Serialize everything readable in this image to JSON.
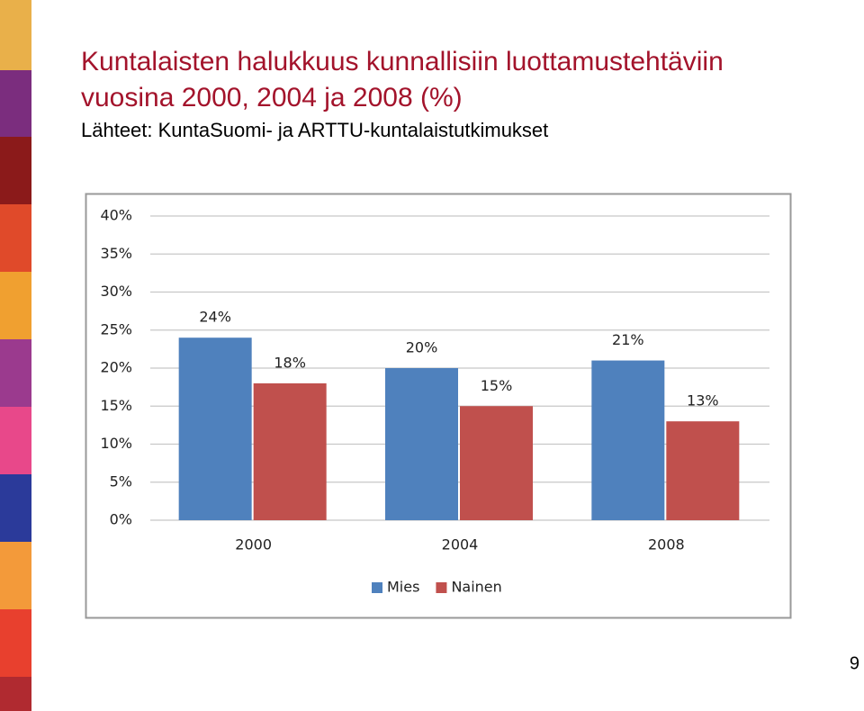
{
  "slide": {
    "title": [
      "Kuntalaisten halukkuus kunnallisiin luottamustehtäviin",
      "vuosina 2000, 2004 ja 2008 (%)"
    ],
    "source": "Lähteet: KuntaSuomi- ja ARTTU-kuntalaistutkimukset",
    "page_number": "9"
  },
  "chart_data": {
    "type": "bar",
    "categories": [
      "2000",
      "2004",
      "2008"
    ],
    "series": [
      {
        "name": "Mies",
        "color": "#4f81bd",
        "values": [
          24,
          20,
          21
        ],
        "value_labels": [
          "24%",
          "20%",
          "21%"
        ]
      },
      {
        "name": "Nainen",
        "color": "#c0504d",
        "values": [
          18,
          15,
          13
        ],
        "value_labels": [
          "18%",
          "15%",
          "13%"
        ]
      }
    ],
    "ylim": [
      0,
      40
    ],
    "yticks": [
      {
        "value": 0,
        "label": "0%"
      },
      {
        "value": 5,
        "label": "5%"
      },
      {
        "value": 10,
        "label": "10%"
      },
      {
        "value": 15,
        "label": "15%"
      },
      {
        "value": 20,
        "label": "20%"
      },
      {
        "value": 25,
        "label": "25%"
      },
      {
        "value": 30,
        "label": "30%"
      },
      {
        "value": 35,
        "label": "35%"
      },
      {
        "value": 40,
        "label": "40%"
      }
    ],
    "grid": true,
    "legend": "bottom"
  }
}
